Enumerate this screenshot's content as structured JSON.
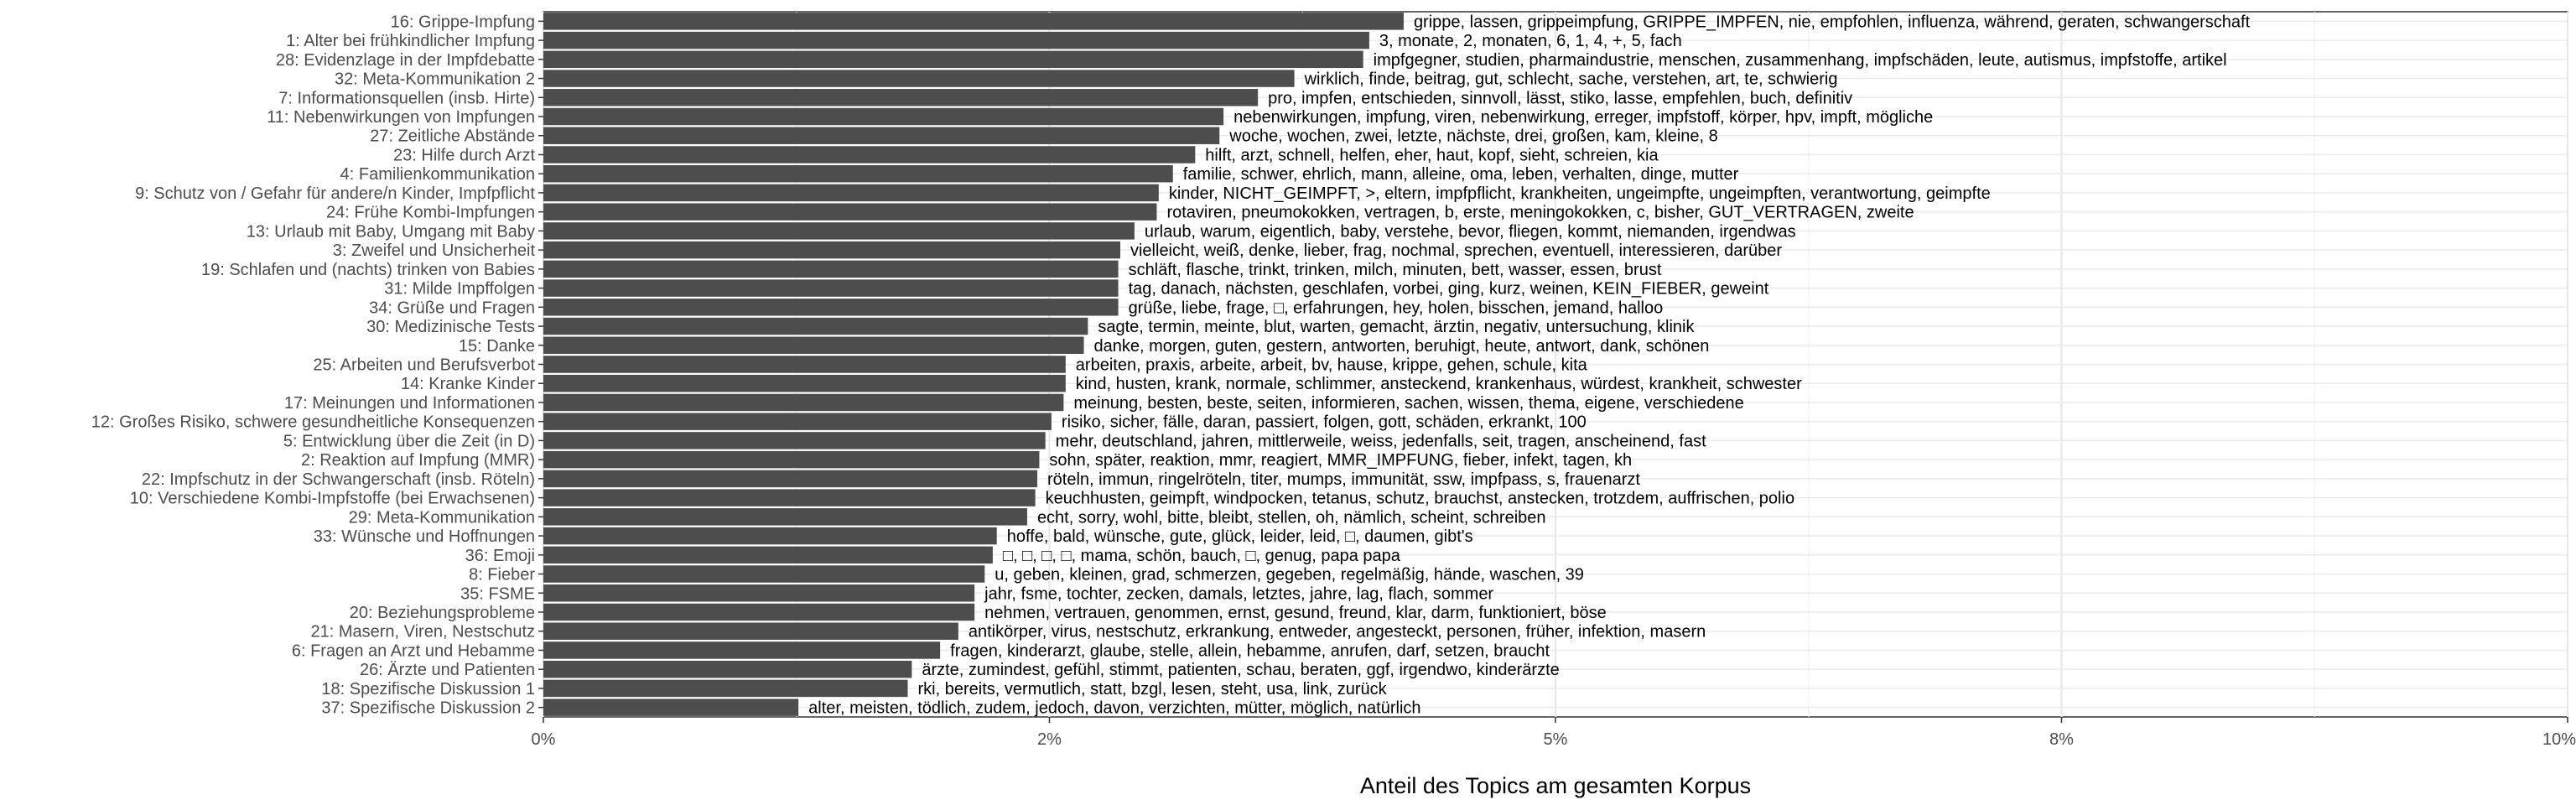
{
  "chart_data": {
    "type": "bar",
    "orientation": "horizontal",
    "xlabel": "Anteil des Topics am gesamten Korpus",
    "ylabel": "",
    "xlim": [
      0,
      0.1
    ],
    "x_ticks": [
      0,
      0.025,
      0.05,
      0.075,
      0.1
    ],
    "x_tick_labels": [
      "0%",
      "2%",
      "5%",
      "8%",
      "10%"
    ],
    "grid": true,
    "bar_color": "#4d4d4d",
    "categories": [
      "16: Grippe-Impfung",
      "1: Alter bei frühkindlicher Impfung",
      "28: Evidenzlage in der Impfdebatte",
      "32: Meta-Kommunikation 2",
      "7: Informationsquellen (insb. Hirte)",
      "11: Nebenwirkungen von Impfungen",
      "27: Zeitliche Abstände",
      "23: Hilfe durch Arzt",
      "4: Familienkommunikation",
      "9: Schutz von / Gefahr für andere/n Kinder, Impfpflicht",
      "24: Frühe Kombi-Impfungen",
      "13: Urlaub mit Baby, Umgang mit Baby",
      "3: Zweifel und Unsicherheit",
      "19: Schlafen und (nachts) trinken von Babies",
      "31: Milde Impffolgen",
      "34: Grüße und Fragen",
      "30: Medizinische Tests",
      "15: Danke",
      "25: Arbeiten und Berufsverbot",
      "14: Kranke Kinder",
      "17: Meinungen und Informationen",
      "12: Großes Risiko, schwere gesundheitliche Konsequenzen",
      "5: Entwicklung über die Zeit (in D)",
      "2: Reaktion auf Impfung (MMR)",
      "22: Impfschutz in der Schwangerschaft (insb. Röteln)",
      "10: Verschiedene Kombi-Impfstoffe (bei Erwachsenen)",
      "29: Meta-Kommunikation",
      "33: Wünsche und Hoffnungen",
      "36: Emoji",
      "8: Fieber",
      "35: FSME",
      "20: Beziehungsprobleme",
      "21: Masern, Viren, Nestschutz",
      "6: Fragen an Arzt und Hebamme",
      "26: Ärzte und Patienten",
      "18: Spezifische Diskussion 1",
      "37: Spezifische Diskussion 2"
    ],
    "values": [
      0.0425,
      0.0408,
      0.0405,
      0.0371,
      0.0353,
      0.0336,
      0.0334,
      0.0322,
      0.0311,
      0.0304,
      0.0303,
      0.0292,
      0.0285,
      0.0284,
      0.0284,
      0.0284,
      0.0269,
      0.0267,
      0.0258,
      0.0258,
      0.0257,
      0.0251,
      0.0248,
      0.0245,
      0.0244,
      0.0243,
      0.0239,
      0.0224,
      0.0222,
      0.0218,
      0.0213,
      0.0213,
      0.0205,
      0.0196,
      0.0182,
      0.018,
      0.0126
    ],
    "bar_labels": [
      "grippe, lassen, grippeimpfung, GRIPPE_IMPFEN, nie, empfohlen, influenza, während, geraten, schwangerschaft",
      "3, monate, 2, monaten, 6, 1, 4, +, 5, fach",
      "impfgegner, studien, pharmaindustrie, menschen, zusammenhang, impfschäden, leute, autismus, impfstoffe, artikel",
      "wirklich, finde, beitrag, gut, schlecht, sache, verstehen, art, te, schwierig",
      "pro, impfen, entschieden, sinnvoll, lässt, stiko, lasse, empfehlen, buch, definitiv",
      "nebenwirkungen, impfung, viren, nebenwirkung, erreger, impfstoff, körper, hpv, impft, mögliche",
      "woche, wochen, zwei, letzte, nächste, drei, großen, kam, kleine, 8",
      "hilft, arzt, schnell, helfen, eher, haut, kopf, sieht, schreien, kia",
      "familie, schwer, ehrlich, mann, alleine, oma, leben, verhalten, dinge, mutter",
      "kinder, NICHT_GEIMPFT, >, eltern, impfpflicht, krankheiten, ungeimpfte, ungeimpften, verantwortung, geimpfte",
      "rotaviren, pneumokokken, vertragen, b, erste, meningokokken, c, bisher, GUT_VERTRAGEN, zweite",
      "urlaub, warum, eigentlich, baby, verstehe, bevor, fliegen, kommt, niemanden, irgendwas",
      "vielleicht, weiß, denke, lieber, frag, nochmal, sprechen, eventuell, interessieren, darüber",
      "schläft, flasche, trinkt, trinken, milch, minuten, bett, wasser, essen, brust",
      "tag, danach, nächsten, geschlafen, vorbei, ging, kurz, weinen, KEIN_FIEBER, geweint",
      "grüße, liebe, frage, □, erfahrungen, hey, holen, bisschen, jemand, halloo",
      "sagte, termin, meinte, blut, warten, gemacht, ärztin, negativ, untersuchung, klinik",
      "danke, morgen, guten, gestern, antworten, beruhigt, heute, antwort, dank, schönen",
      "arbeiten, praxis, arbeite, arbeit, bv, hause, krippe, gehen, schule, kita",
      "kind, husten, krank, normale, schlimmer, ansteckend, krankenhaus, würdest, krankheit, schwester",
      "meinung, besten, beste, seiten, informieren, sachen, wissen, thema, eigene, verschiedene",
      "risiko, sicher, fälle, daran, passiert, folgen, gott, schäden, erkrankt, 100",
      "mehr, deutschland, jahren, mittlerweile, weiss, jedenfalls, seit, tragen, anscheinend, fast",
      "sohn, später, reaktion, mmr, reagiert, MMR_IMPFUNG, fieber, infekt, tagen, kh",
      "röteln, immun, ringelröteln, titer, mumps, immunität, ssw, impfpass, s, frauenarzt",
      "keuchhusten, geimpft, windpocken, tetanus, schutz, brauchst, anstecken, trotzdem, auffrischen, polio",
      "echt, sorry, wohl, bitte, bleibt, stellen, oh, nämlich, scheint, schreiben",
      "hoffe, bald, wünsche, gute, glück, leider, leid, □, daumen, gibt's",
      "□, □, □, □, mama, schön, bauch, □, genug, papa papa",
      "u, geben, kleinen, grad, schmerzen, gegeben, regelmäßig, hände, waschen, 39",
      "jahr, fsme, tochter, zecken, damals, letztes, jahre, lag, flach, sommer",
      "nehmen, vertrauen, genommen, ernst, gesund, freund, klar, darm, funktioniert, böse",
      "antikörper, virus, nestschutz, erkrankung, entweder, angesteckt, personen, früher, infektion, masern",
      "fragen, kinderarzt, glaube, stelle, allein, hebamme, anrufen, darf, setzen, braucht",
      "ärzte, zumindest, gefühl, stimmt, patienten, schau, beraten, ggf, irgendwo, kinderärzte",
      "rki, bereits, vermutlich, statt, bzgl, lesen, steht, usa, link, zurück",
      "alter, meisten, tödlich, zudem, jedoch, davon, verzichten, mütter, möglich, natürlich"
    ]
  }
}
